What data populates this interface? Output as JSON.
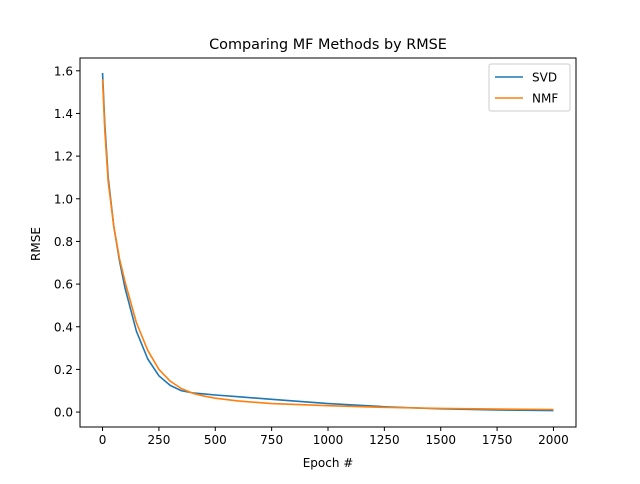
{
  "chart_data": {
    "type": "line",
    "title": "Comparing MF Methods by RMSE",
    "xlabel": "Epoch #",
    "ylabel": "RMSE",
    "xlim": [
      -100,
      2100
    ],
    "ylim": [
      -0.07,
      1.66
    ],
    "xticks": [
      0,
      250,
      500,
      750,
      1000,
      1250,
      1500,
      1750,
      2000
    ],
    "yticks": [
      0.0,
      0.2,
      0.4,
      0.6,
      0.8,
      1.0,
      1.2,
      1.4,
      1.6
    ],
    "xtick_labels": [
      "0",
      "250",
      "500",
      "750",
      "1000",
      "1250",
      "1500",
      "1750",
      "2000"
    ],
    "ytick_labels": [
      "0.0",
      "0.2",
      "0.4",
      "0.6",
      "0.8",
      "1.0",
      "1.2",
      "1.4",
      "1.6"
    ],
    "grid": false,
    "legend_position": "top-right",
    "series": [
      {
        "name": "SVD",
        "color": "#1f77b4",
        "x": [
          0,
          10,
          25,
          50,
          75,
          100,
          150,
          200,
          250,
          300,
          350,
          400,
          450,
          500,
          600,
          750,
          1000,
          1250,
          1500,
          1750,
          2000
        ],
        "y": [
          1.59,
          1.35,
          1.1,
          0.87,
          0.71,
          0.58,
          0.38,
          0.25,
          0.17,
          0.125,
          0.1,
          0.09,
          0.085,
          0.08,
          0.072,
          0.06,
          0.04,
          0.025,
          0.015,
          0.01,
          0.007
        ]
      },
      {
        "name": "NMF",
        "color": "#ff7f0e",
        "x": [
          0,
          10,
          25,
          50,
          75,
          100,
          150,
          200,
          250,
          300,
          350,
          400,
          450,
          500,
          600,
          750,
          1000,
          1250,
          1500,
          1750,
          2000
        ],
        "y": [
          1.56,
          1.32,
          1.08,
          0.87,
          0.72,
          0.61,
          0.42,
          0.29,
          0.2,
          0.145,
          0.11,
          0.088,
          0.075,
          0.065,
          0.052,
          0.04,
          0.03,
          0.022,
          0.017,
          0.014,
          0.012
        ]
      }
    ]
  }
}
